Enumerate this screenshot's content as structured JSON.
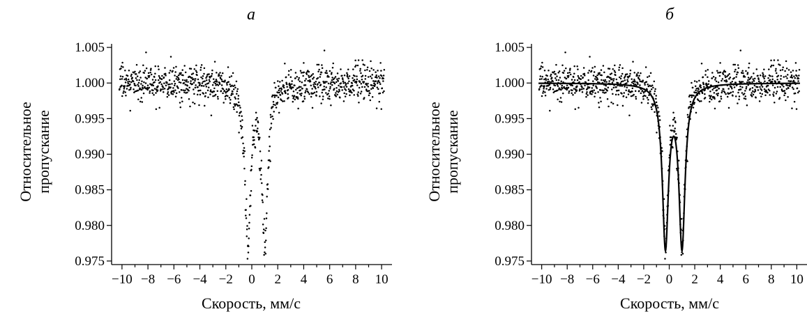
{
  "chart_data": [
    {
      "panel_label": "а",
      "type": "scatter",
      "xlabel": "Скорость, мм/с",
      "ylabel_lines": [
        "Относительное",
        "пропускание"
      ],
      "xlim": [
        -10.8,
        10.8
      ],
      "ylim": [
        0.9745,
        1.0055
      ],
      "xticks": [
        -10,
        -8,
        -6,
        -4,
        -2,
        0,
        2,
        4,
        6,
        8,
        10
      ],
      "xtick_labels": [
        "−10",
        "−8",
        "−6",
        "−4",
        "−2",
        "0",
        "2",
        "4",
        "6",
        "8",
        "10"
      ],
      "yticks": [
        0.975,
        0.98,
        0.985,
        0.99,
        0.995,
        1.0,
        1.005
      ],
      "ytick_labels": [
        "0.975",
        "0.980",
        "0.985",
        "0.990",
        "0.995",
        "1.000",
        "1.005"
      ],
      "grid": false,
      "legend": "none",
      "series": [
        {
          "kind": "points",
          "color": "#000000",
          "x_range": [
            -10.2,
            10.2
          ],
          "n_points": 1024,
          "baseline": 1.0,
          "noise_sd": 0.0014,
          "doublet": {
            "centers": [
              -0.3,
              1.0
            ],
            "depths": [
              0.022,
              0.022
            ],
            "hwhm": 0.27
          }
        }
      ]
    },
    {
      "panel_label": "б",
      "type": "scatter",
      "xlabel": "Скорость, мм/с",
      "ylabel_lines": [
        "Относительное",
        "пропускание"
      ],
      "xlim": [
        -10.8,
        10.8
      ],
      "ylim": [
        0.9745,
        1.0055
      ],
      "xticks": [
        -10,
        -8,
        -6,
        -4,
        -2,
        0,
        2,
        4,
        6,
        8,
        10
      ],
      "xtick_labels": [
        "−10",
        "−8",
        "−6",
        "−4",
        "−2",
        "0",
        "2",
        "4",
        "6",
        "8",
        "10"
      ],
      "yticks": [
        0.975,
        0.98,
        0.985,
        0.99,
        0.995,
        1.0,
        1.005
      ],
      "ytick_labels": [
        "0.975",
        "0.980",
        "0.985",
        "0.990",
        "0.995",
        "1.000",
        "1.005"
      ],
      "grid": false,
      "legend": "none",
      "series": [
        {
          "kind": "points",
          "color": "#000000",
          "x_range": [
            -10.2,
            10.2
          ],
          "n_points": 1024,
          "baseline": 1.0,
          "noise_sd": 0.0014,
          "doublet": {
            "centers": [
              -0.3,
              1.0
            ],
            "depths": [
              0.022,
              0.022
            ],
            "hwhm": 0.27
          }
        },
        {
          "kind": "fit_line",
          "color": "#000000",
          "baseline": 1.0,
          "doublet": {
            "centers": [
              -0.3,
              1.0
            ],
            "depths": [
              0.0225,
              0.0225
            ],
            "hwhm": 0.29
          }
        }
      ]
    }
  ]
}
